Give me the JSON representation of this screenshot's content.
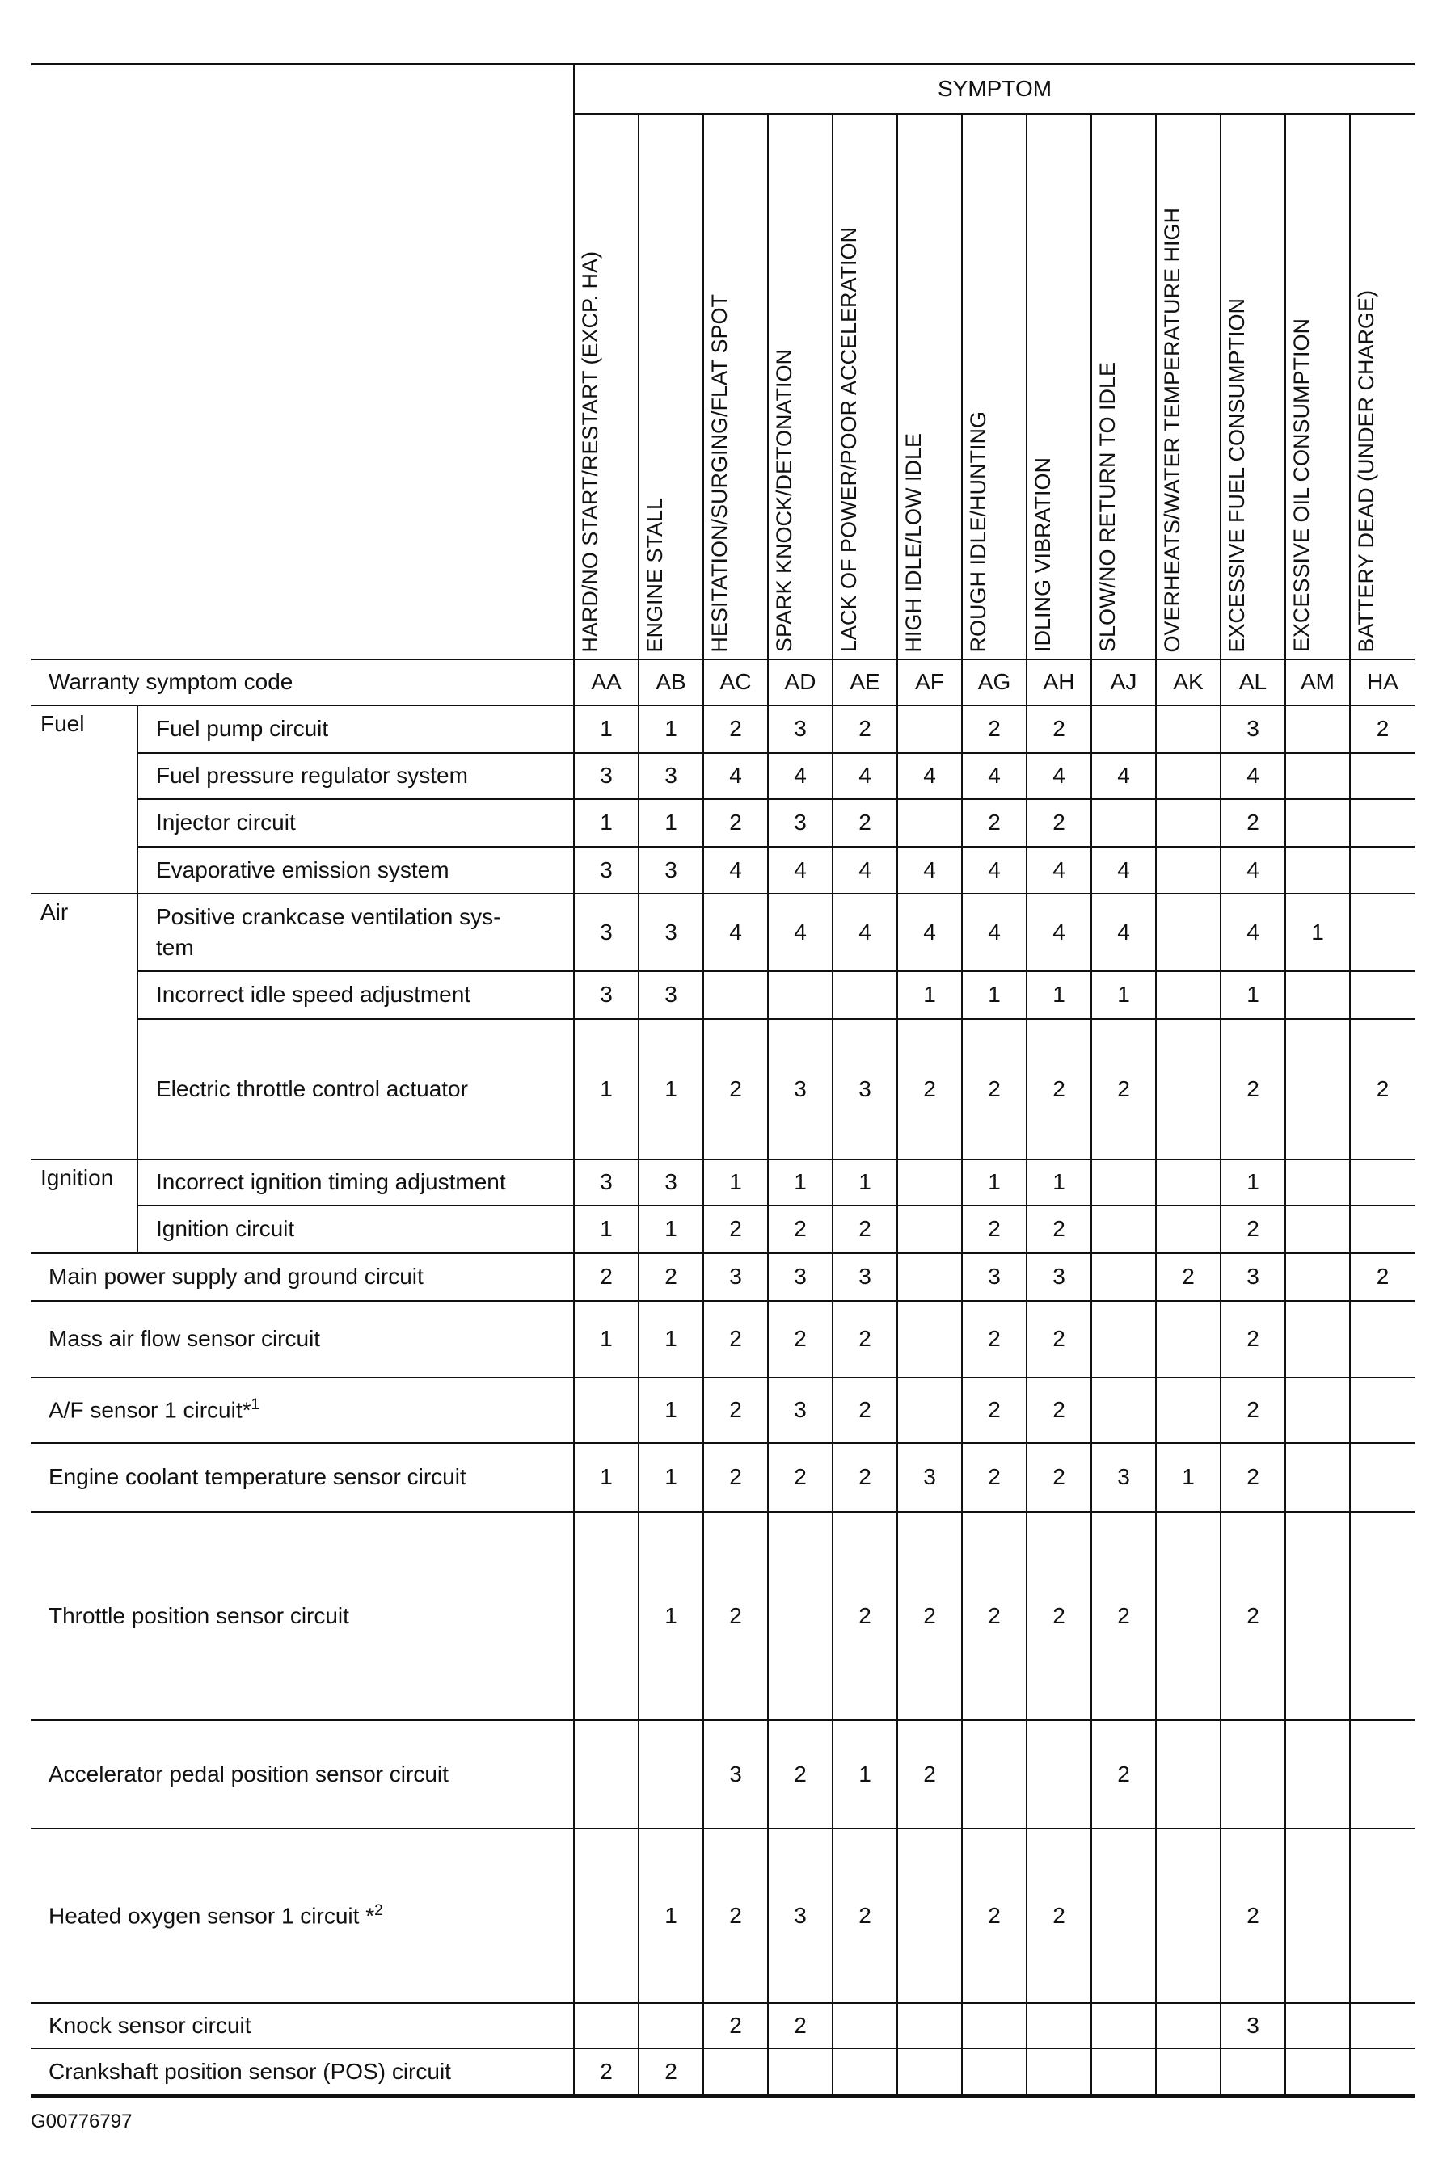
{
  "header": {
    "symptom_label": "SYMPTOM",
    "symptoms": [
      "HARD/NO START/RESTART (EXCP. HA)",
      "ENGINE STALL",
      "HESITATION/SURGING/FLAT SPOT",
      "SPARK KNOCK/DETONATION",
      "LACK OF POWER/POOR ACCELERATION",
      "HIGH IDLE/LOW IDLE",
      "ROUGH IDLE/HUNTING",
      "IDLING VIBRATION",
      "SLOW/NO RETURN TO IDLE",
      "OVERHEATS/WATER TEMPERATURE HIGH",
      "EXCESSIVE FUEL CONSUMPTION",
      "EXCESSIVE OIL CONSUMPTION",
      "BATTERY DEAD (UNDER CHARGE)"
    ],
    "code_label": "Warranty symptom code",
    "codes": [
      "AA",
      "AB",
      "AC",
      "AD",
      "AE",
      "AF",
      "AG",
      "AH",
      "AJ",
      "AK",
      "AL",
      "AM",
      "HA"
    ]
  },
  "rows": [
    {
      "category": "Fuel",
      "span": 4,
      "item": "Fuel pump circuit",
      "values": [
        "1",
        "1",
        "2",
        "3",
        "2",
        "",
        "2",
        "2",
        "",
        "",
        "3",
        "",
        "2"
      ]
    },
    {
      "item": "Fuel pressure regulator system",
      "values": [
        "3",
        "3",
        "4",
        "4",
        "4",
        "4",
        "4",
        "4",
        "4",
        "",
        "4",
        "",
        ""
      ]
    },
    {
      "item": "Injector circuit",
      "values": [
        "1",
        "1",
        "2",
        "3",
        "2",
        "",
        "2",
        "2",
        "",
        "",
        "2",
        "",
        ""
      ]
    },
    {
      "item": "Evaporative emission system",
      "values": [
        "3",
        "3",
        "4",
        "4",
        "4",
        "4",
        "4",
        "4",
        "4",
        "",
        "4",
        "",
        ""
      ]
    },
    {
      "category": "Air",
      "span": 3,
      "item": "Positive crankcase ventilation sys-\ntem",
      "values": [
        "3",
        "3",
        "4",
        "4",
        "4",
        "4",
        "4",
        "4",
        "4",
        "",
        "4",
        "1",
        ""
      ]
    },
    {
      "item": "Incorrect idle speed adjustment",
      "values": [
        "3",
        "3",
        "",
        "",
        "",
        "1",
        "1",
        "1",
        "1",
        "",
        "1",
        "",
        ""
      ]
    },
    {
      "item": "Electric throttle control actuator",
      "values": [
        "1",
        "1",
        "2",
        "3",
        "3",
        "2",
        "2",
        "2",
        "2",
        "",
        "2",
        "",
        "2"
      ]
    },
    {
      "category": "Ignition",
      "span": 2,
      "item": "Incorrect ignition timing adjustment",
      "values": [
        "3",
        "3",
        "1",
        "1",
        "1",
        "",
        "1",
        "1",
        "",
        "",
        "1",
        "",
        ""
      ]
    },
    {
      "item": "Ignition circuit",
      "values": [
        "1",
        "1",
        "2",
        "2",
        "2",
        "",
        "2",
        "2",
        "",
        "",
        "2",
        "",
        ""
      ]
    },
    {
      "full": true,
      "item": "Main power supply and ground circuit",
      "values": [
        "2",
        "2",
        "3",
        "3",
        "3",
        "",
        "3",
        "3",
        "",
        "2",
        "3",
        "",
        "2"
      ]
    },
    {
      "full": true,
      "item": "Mass air flow sensor circuit",
      "values": [
        "1",
        "1",
        "2",
        "2",
        "2",
        "",
        "2",
        "2",
        "",
        "",
        "2",
        "",
        ""
      ]
    },
    {
      "full": true,
      "item": "A/F sensor 1 circuit*",
      "sup": "1",
      "values": [
        "",
        "1",
        "2",
        "3",
        "2",
        "",
        "2",
        "2",
        "",
        "",
        "2",
        "",
        ""
      ]
    },
    {
      "full": true,
      "item": "Engine coolant temperature sensor circuit",
      "values": [
        "1",
        "1",
        "2",
        "2",
        "2",
        "3",
        "2",
        "2",
        "3",
        "1",
        "2",
        "",
        ""
      ]
    },
    {
      "full": true,
      "item": "Throttle position sensor circuit",
      "values": [
        "",
        "1",
        "2",
        "",
        "2",
        "2",
        "2",
        "2",
        "2",
        "",
        "2",
        "",
        ""
      ]
    },
    {
      "full": true,
      "item": "Accelerator pedal position sensor circuit",
      "values": [
        "",
        "",
        "3",
        "2",
        "1",
        "2",
        "",
        "",
        "2",
        "",
        "",
        "",
        ""
      ]
    },
    {
      "full": true,
      "item": "Heated oxygen sensor 1 circuit *",
      "sup": "2",
      "values": [
        "",
        "1",
        "2",
        "3",
        "2",
        "",
        "2",
        "2",
        "",
        "",
        "2",
        "",
        ""
      ]
    },
    {
      "full": true,
      "item": "Knock sensor circuit",
      "values": [
        "",
        "",
        "2",
        "2",
        "",
        "",
        "",
        "",
        "",
        "",
        "3",
        "",
        ""
      ]
    },
    {
      "full": true,
      "item": "Crankshaft position sensor (POS) circuit",
      "values": [
        "2",
        "2",
        "",
        "",
        "",
        "",
        "",
        "",
        "",
        "",
        "",
        "",
        ""
      ]
    }
  ],
  "footer": {
    "figure_id": "G00776797"
  }
}
